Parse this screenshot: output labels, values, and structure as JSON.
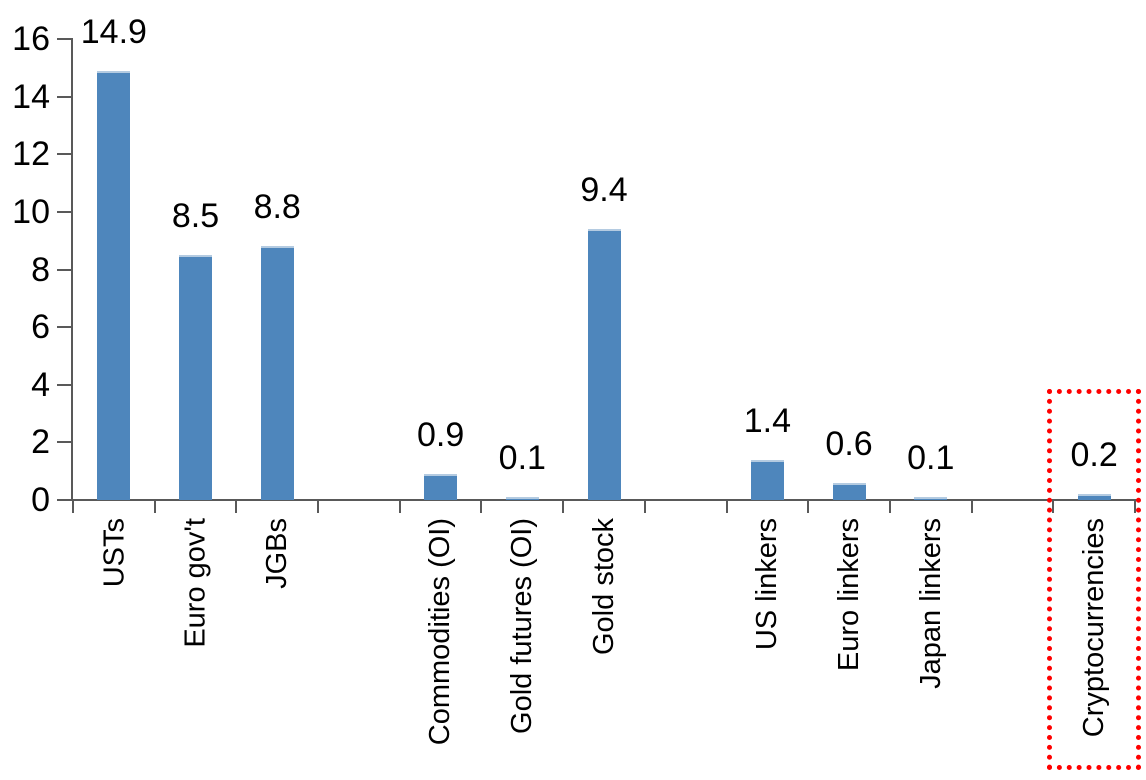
{
  "chart_data": {
    "type": "bar",
    "title": "",
    "categories": [
      "USTs",
      "Euro gov't",
      "JGBs",
      "",
      "Commodities (OI)",
      "Gold futures (OI)",
      "Gold stock",
      "",
      "US linkers",
      "Euro linkers",
      "Japan linkers",
      "",
      "Cryptocurrencies"
    ],
    "values": [
      14.9,
      8.5,
      8.8,
      null,
      0.9,
      0.1,
      9.4,
      null,
      1.4,
      0.6,
      0.1,
      null,
      0.2
    ],
    "data_labels": [
      "14.9",
      "8.5",
      "8.8",
      null,
      "0.9",
      "0.1",
      "9.4",
      null,
      "1.4",
      "0.6",
      "0.1",
      null,
      "0.2"
    ],
    "xlabel": "",
    "ylabel": "",
    "ylim": [
      0,
      16
    ],
    "ytick_step": 2,
    "yticks": [
      "0",
      "2",
      "4",
      "6",
      "8",
      "10",
      "12",
      "14",
      "16"
    ],
    "grid": "off",
    "legend": "none",
    "bar_color": "#4E86BC",
    "bar_top_edge_color": "#B4CBE1",
    "axis_color": "#595959",
    "text_color": "#000000",
    "highlight": {
      "category": "Cryptocurrencies",
      "category_index": 12,
      "box_color": "#FF0000",
      "box_style": "dotted"
    }
  }
}
